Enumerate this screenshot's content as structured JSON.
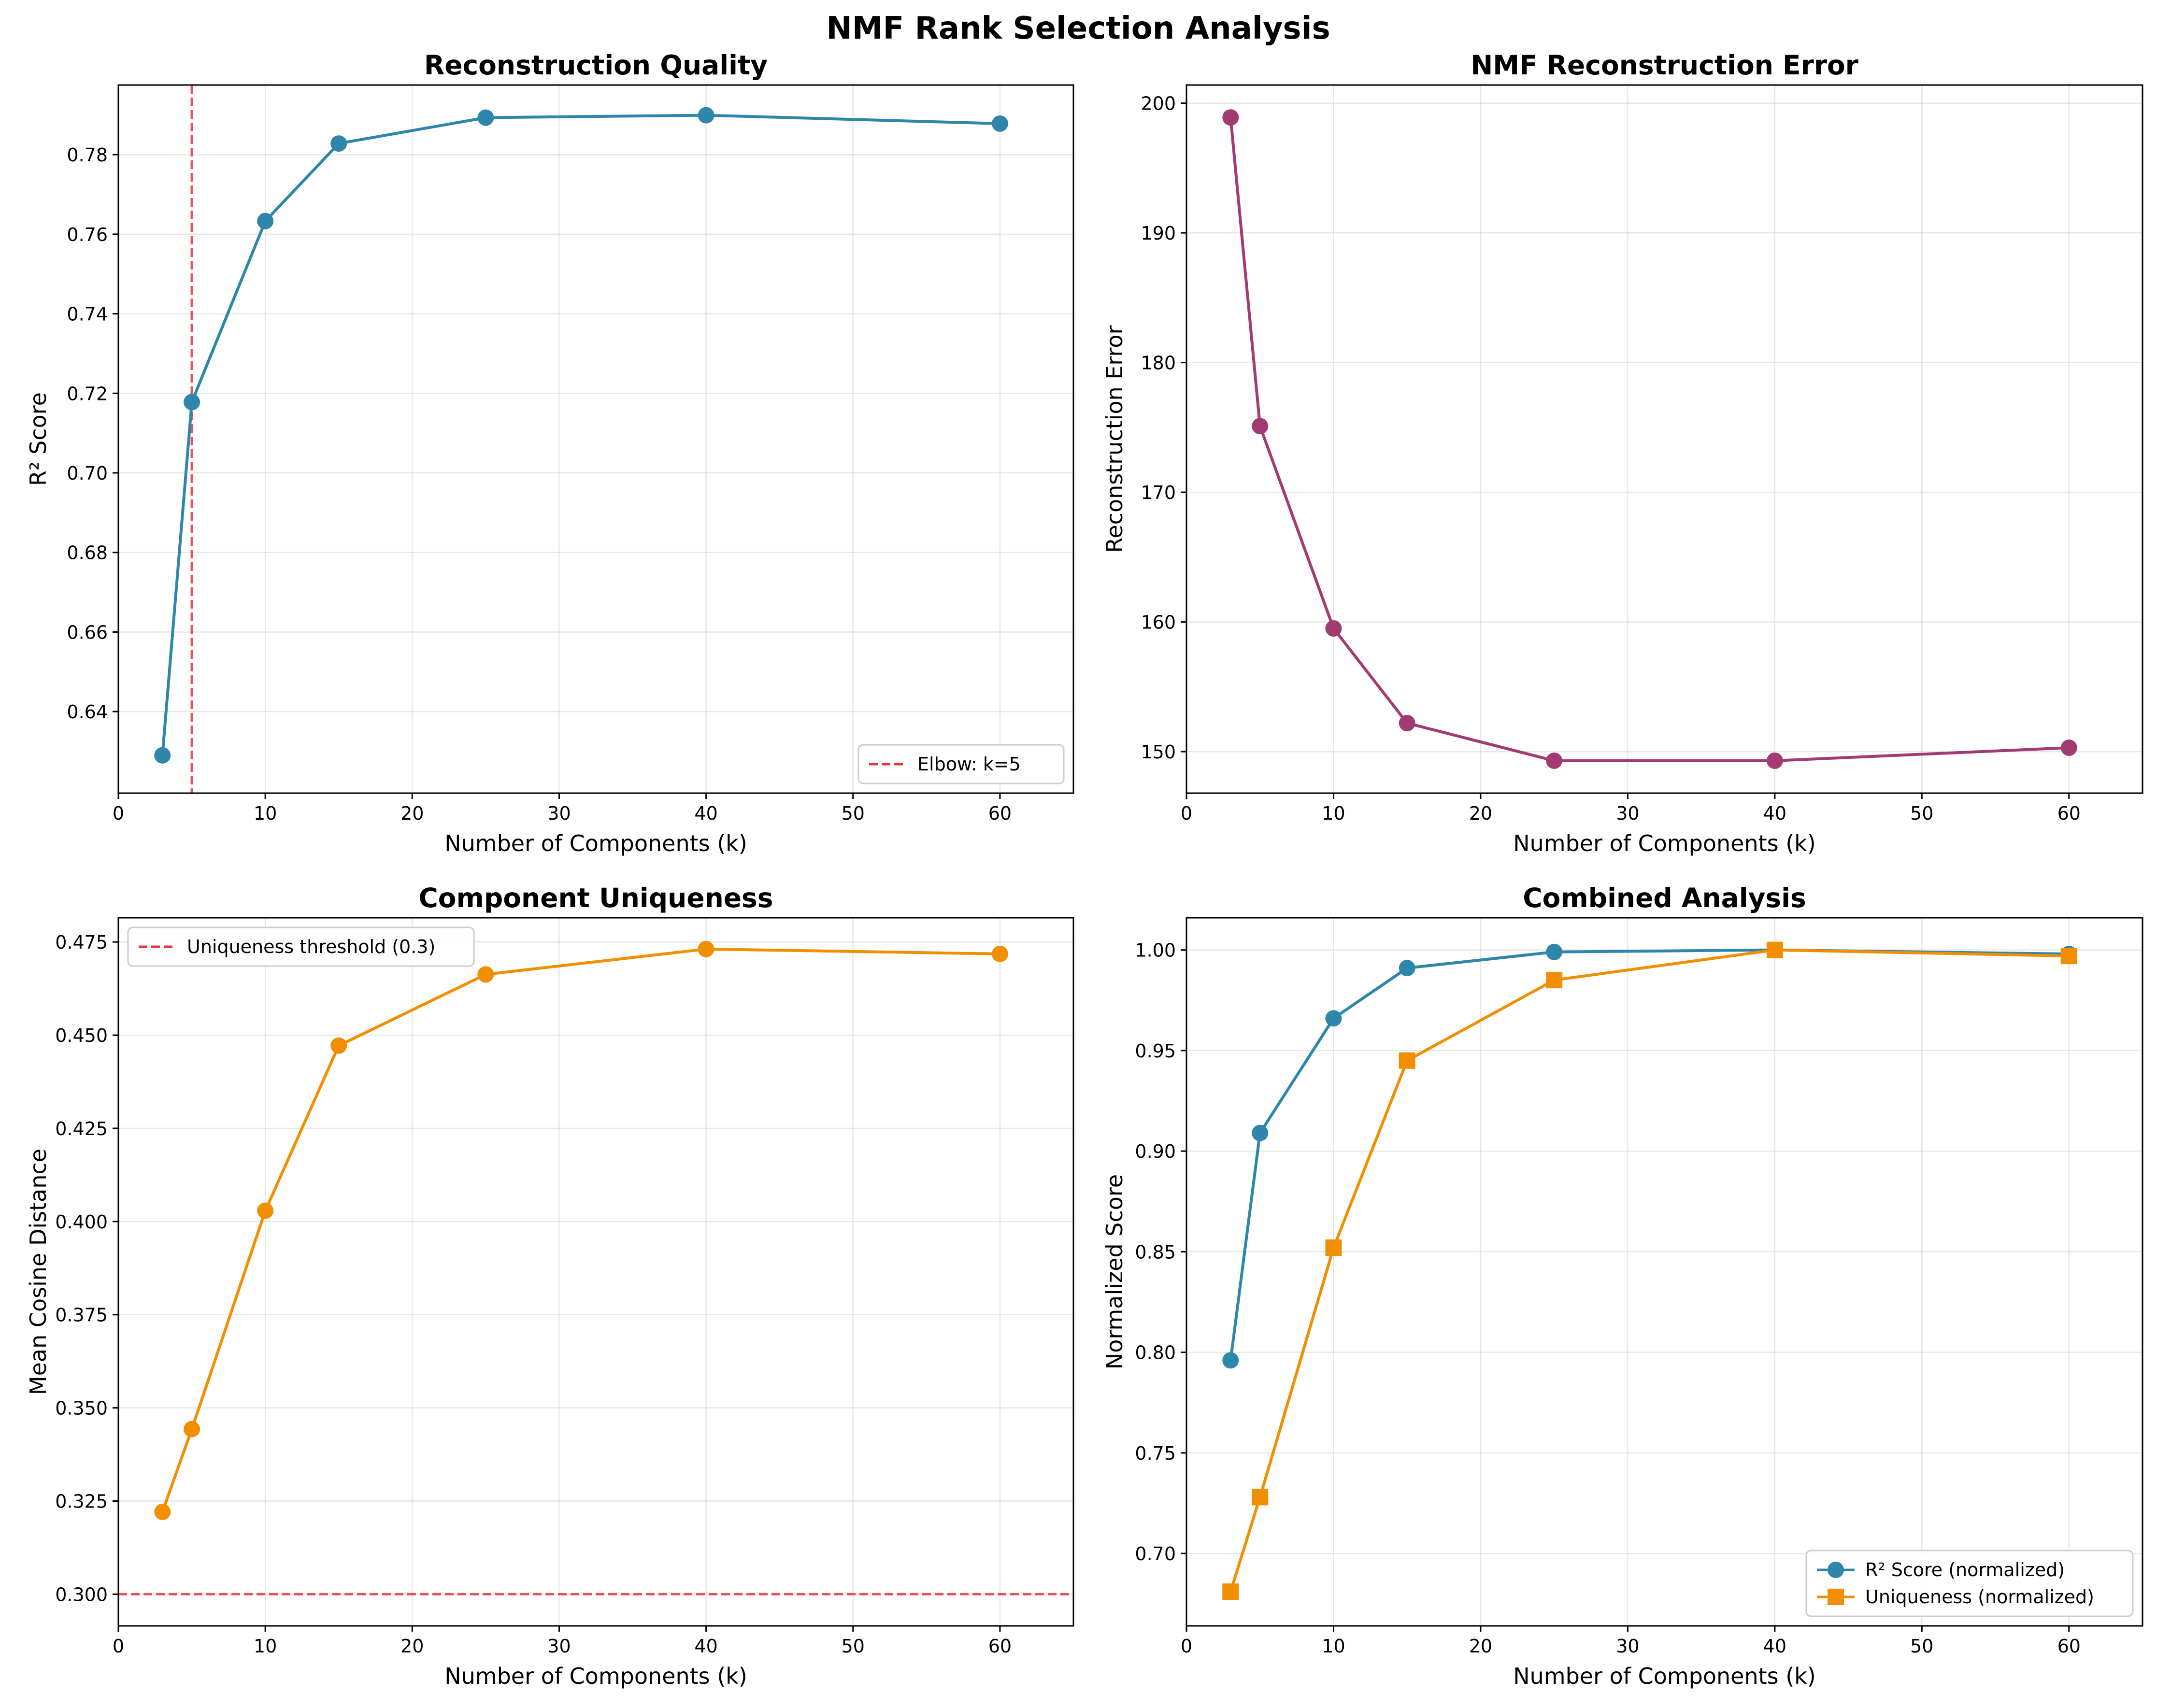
{
  "suptitle": "NMF Rank Selection Analysis",
  "colors": {
    "r2": "#2e86ab",
    "error": "#a23b72",
    "uniqueness": "#f18f01",
    "reference": "#e8323c"
  },
  "chart_data": [
    {
      "type": "line",
      "title": "Reconstruction Quality",
      "xlabel": "Number of Components (k)",
      "ylabel": "R² Score",
      "xlim": [
        0,
        65
      ],
      "ylim": [
        0.6195,
        0.7975
      ],
      "xticks": [
        0,
        10,
        20,
        30,
        40,
        50,
        60
      ],
      "yticks": [
        0.64,
        0.66,
        0.68,
        0.7,
        0.72,
        0.74,
        0.76,
        0.78
      ],
      "ytick_decimals": 2,
      "grid": true,
      "legend_position": "lower right",
      "series": [
        {
          "x": [
            3,
            5,
            10,
            15,
            25,
            40,
            60
          ],
          "y": [
            0.629,
            0.7178,
            0.7633,
            0.7828,
            0.7893,
            0.7899,
            0.7878
          ],
          "color": "#2e86ab",
          "marker": "circle"
        }
      ],
      "vlines": [
        {
          "x": 5,
          "label": "Elbow: k=5",
          "color": "#e8323c",
          "style": "dashed"
        }
      ]
    },
    {
      "type": "line",
      "title": "NMF Reconstruction Error",
      "xlabel": "Number of Components (k)",
      "ylabel": "Reconstruction Error",
      "xlim": [
        0,
        65
      ],
      "ylim": [
        146.8,
        201.4
      ],
      "xticks": [
        0,
        10,
        20,
        30,
        40,
        50,
        60
      ],
      "yticks": [
        150,
        160,
        170,
        180,
        190,
        200
      ],
      "ytick_decimals": 0,
      "grid": true,
      "series": [
        {
          "x": [
            3,
            5,
            10,
            15,
            25,
            40,
            60
          ],
          "y": [
            198.9,
            175.1,
            159.5,
            152.2,
            149.3,
            149.3,
            150.3
          ],
          "color": "#a23b72",
          "marker": "circle"
        }
      ]
    },
    {
      "type": "line",
      "title": "Component Uniqueness",
      "xlabel": "Number of Components (k)",
      "ylabel": "Mean Cosine Distance",
      "xlim": [
        0,
        65
      ],
      "ylim": [
        0.2915,
        0.4815
      ],
      "xticks": [
        0,
        10,
        20,
        30,
        40,
        50,
        60
      ],
      "yticks": [
        0.3,
        0.325,
        0.35,
        0.375,
        0.4,
        0.425,
        0.45,
        0.475
      ],
      "ytick_decimals": 3,
      "grid": true,
      "legend_position": "upper left",
      "series": [
        {
          "x": [
            3,
            5,
            10,
            15,
            25,
            40,
            60
          ],
          "y": [
            0.3221,
            0.3443,
            0.4029,
            0.4472,
            0.4663,
            0.4731,
            0.4718
          ],
          "color": "#f18f01",
          "marker": "circle"
        }
      ],
      "hlines": [
        {
          "y": 0.3,
          "label": "Uniqueness threshold (0.3)",
          "color": "#e8323c",
          "style": "dashed"
        }
      ]
    },
    {
      "type": "line",
      "title": "Combined Analysis",
      "xlabel": "Number of Components (k)",
      "ylabel": "Normalized Score",
      "xlim": [
        0,
        65
      ],
      "ylim": [
        0.664,
        1.016
      ],
      "xticks": [
        0,
        10,
        20,
        30,
        40,
        50,
        60
      ],
      "yticks": [
        0.7,
        0.75,
        0.8,
        0.85,
        0.9,
        0.95,
        1.0
      ],
      "ytick_decimals": 2,
      "grid": true,
      "legend_position": "lower right",
      "series": [
        {
          "name": "R² Score (normalized)",
          "x": [
            3,
            5,
            10,
            15,
            25,
            40,
            60
          ],
          "y": [
            0.796,
            0.909,
            0.966,
            0.991,
            0.999,
            1.0,
            0.998
          ],
          "color": "#2e86ab",
          "marker": "circle"
        },
        {
          "name": "Uniqueness (normalized)",
          "x": [
            3,
            5,
            10,
            15,
            25,
            40,
            60
          ],
          "y": [
            0.681,
            0.728,
            0.852,
            0.945,
            0.985,
            1.0,
            0.997
          ],
          "color": "#f18f01",
          "marker": "square"
        }
      ]
    }
  ]
}
